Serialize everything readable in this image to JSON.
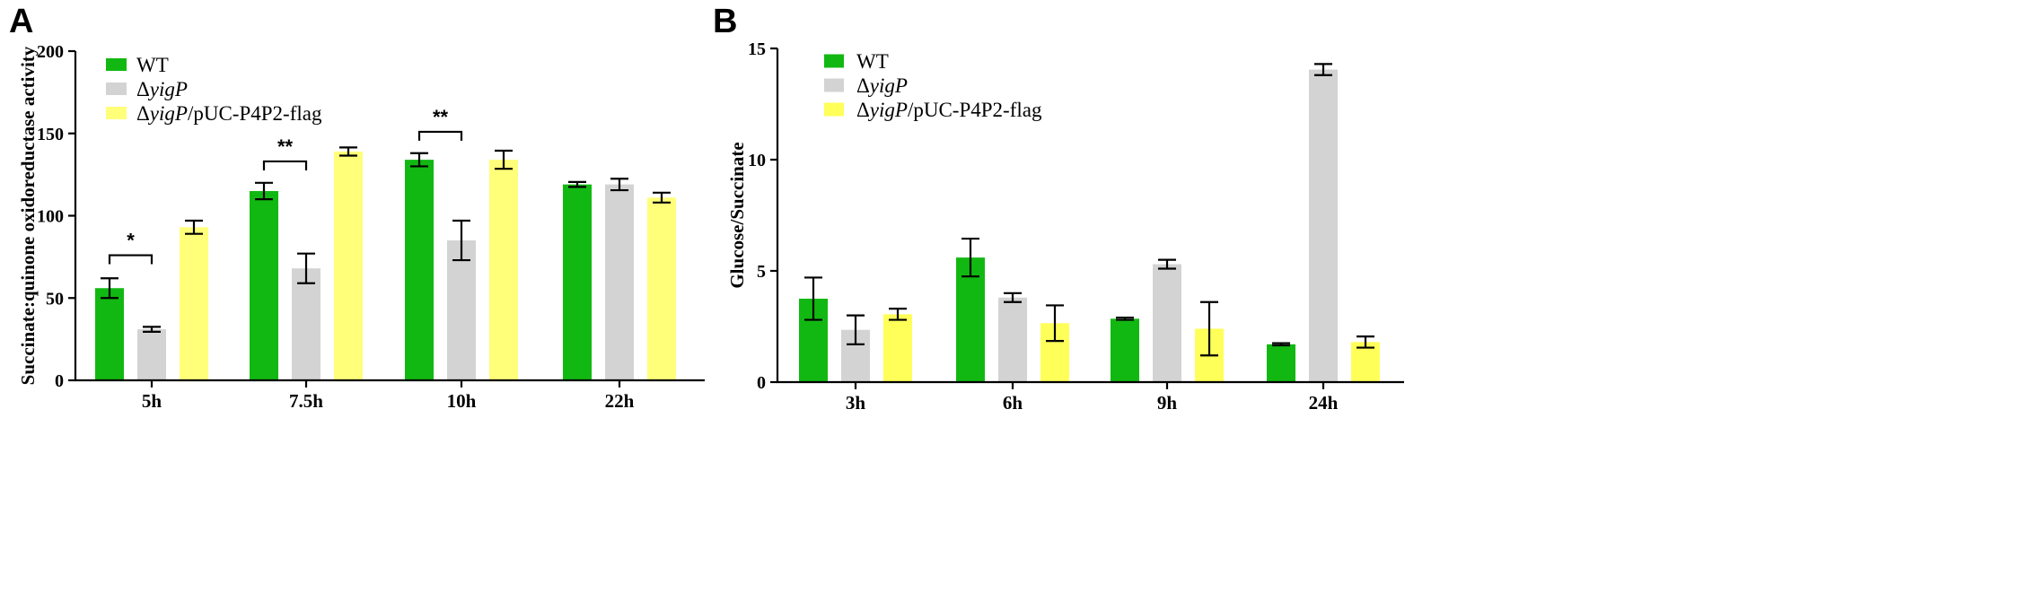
{
  "chart_data": [
    {
      "panel": "A",
      "type": "bar",
      "ylabel": "Succinate:quinone oxidoreductase activity",
      "xlabel": "",
      "ylim": [
        0,
        200
      ],
      "yticks": [
        "0",
        "50",
        "100",
        "150",
        "200"
      ],
      "categories": [
        "5h",
        "7.5h",
        "10h",
        "22h"
      ],
      "legend_position": "top-left",
      "series": [
        {
          "name": "WT",
          "name_parts": [
            "WT"
          ],
          "color": "#12b812",
          "values": [
            56,
            115,
            134,
            119
          ],
          "errors": [
            6,
            5,
            4,
            1.5
          ]
        },
        {
          "name": "ΔyigP",
          "name_parts": [
            "Δ",
            "yigP"
          ],
          "color": "#d3d3d3",
          "values": [
            31,
            68,
            85,
            119
          ],
          "errors": [
            1.5,
            9,
            12,
            3.5
          ]
        },
        {
          "name": "ΔyigP/pUC-P4P2-flag",
          "name_parts": [
            "Δ",
            "yigP",
            "/pUC-P4P2-flag"
          ],
          "color": "#ffff7a",
          "values": [
            93,
            139,
            134,
            111
          ],
          "errors": [
            4,
            2.5,
            5.5,
            3
          ]
        }
      ],
      "significance": [
        {
          "category": "5h",
          "label": "*",
          "y": 76
        },
        {
          "category": "7.5h",
          "label": "**",
          "y": 133
        },
        {
          "category": "10h",
          "label": "**",
          "y": 151
        }
      ]
    },
    {
      "panel": "B",
      "type": "bar",
      "ylabel": "Glucose/Succinate",
      "xlabel": "",
      "ylim": [
        0,
        15
      ],
      "yticks": [
        "0",
        "5",
        "10",
        "15"
      ],
      "categories": [
        "3h",
        "6h",
        "9h",
        "24h"
      ],
      "legend_position": "top-left",
      "series": [
        {
          "name": "WT",
          "name_parts": [
            "WT"
          ],
          "color": "#12b812",
          "values": [
            3.75,
            5.6,
            2.85,
            1.7
          ],
          "errors": [
            0.95,
            0.85,
            0.05,
            0.05
          ]
        },
        {
          "name": "ΔyigP",
          "name_parts": [
            "Δ",
            "yigP"
          ],
          "color": "#d3d3d3",
          "values": [
            2.35,
            3.8,
            5.3,
            14.05
          ],
          "errors": [
            0.65,
            0.2,
            0.2,
            0.25
          ]
        },
        {
          "name": "ΔyigP/pUC-P4P2-flag",
          "name_parts": [
            "Δ",
            "yigP",
            "/pUC-P4P2-flag"
          ],
          "color": "#ffff5a",
          "values": [
            3.05,
            2.65,
            2.4,
            1.8
          ],
          "errors": [
            0.25,
            0.8,
            1.2,
            0.25
          ]
        }
      ],
      "significance": []
    }
  ]
}
